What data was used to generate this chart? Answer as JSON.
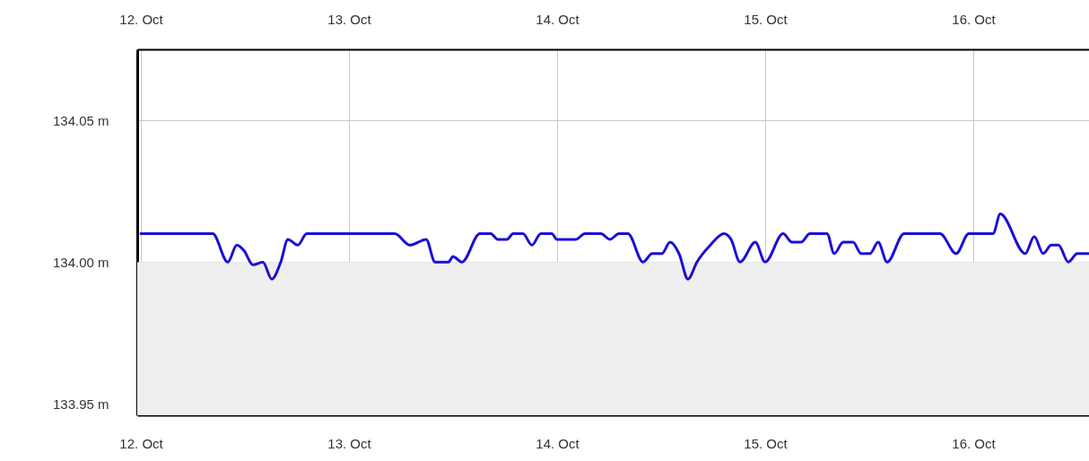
{
  "chart_data": {
    "type": "line",
    "x": [
      "--10-12T00:00",
      "--10-12T08:17",
      "--10-12T10:02",
      "--10-12T11:04",
      "--10-12T11:54",
      "--10-12T12:56",
      "--10-12T14:04",
      "--10-12T15:06",
      "--10-12T16:08",
      "--10-12T16:58",
      "--10-12T18:06",
      "--10-12T19:08",
      "--10-13T05:17",
      "--10-13T07:02",
      "--10-13T08:54",
      "--10-13T09:56",
      "--10-13T11:29",
      "--10-13T12:00",
      "--10-13T13:02",
      "--10-13T15:06",
      "--10-13T16:21",
      "--10-13T17:10",
      "--10-13T18:13",
      "--10-13T18:56",
      "--10-13T20:04",
      "--10-13T21:06",
      "--10-13T22:08",
      "--10-13T23:23",
      "--10-14T00:00",
      "--10-14T02:10",
      "--10-14T03:12",
      "--10-14T05:04",
      "--10-14T06:06",
      "--10-14T07:08",
      "--10-14T08:10",
      "--10-14T09:56",
      "--10-14T10:58",
      "--10-14T12:06",
      "--10-14T13:02",
      "--10-14T14:04",
      "--10-14T15:06",
      "--10-14T16:08",
      "--10-14T17:41",
      "--10-14T19:15",
      "--10-14T20:04",
      "--10-14T21:06",
      "--10-14T22:52",
      "--10-15T00:00",
      "--10-15T02:04",
      "--10-15T03:06",
      "--10-15T04:08",
      "--10-15T05:10",
      "--10-15T07:08",
      "--10-15T07:58",
      "--10-15T09:00",
      "--10-15T10:08",
      "--10-15T11:04",
      "--10-15T12:06",
      "--10-15T13:02",
      "--10-15T14:04",
      "--10-15T16:02",
      "--10-15T20:10",
      "--10-15T22:02",
      "--10-15T23:29",
      "--10-16T02:17",
      "--10-16T03:07",
      "--10-16T06:00",
      "--10-16T07:02",
      "--10-16T08:04",
      "--10-16T09:00",
      "--10-16T09:50",
      "--10-16T10:58",
      "--10-16T12:00",
      "--10-16T13:21"
    ],
    "series": [
      {
        "color": "#1a0fd6",
        "values": [
          134.01,
          134.01,
          134.0,
          134.006,
          134.004,
          133.999,
          134.0,
          133.994,
          134.0,
          134.008,
          134.006,
          134.01,
          134.01,
          134.006,
          134.008,
          134.0,
          134.0,
          134.002,
          134.0,
          134.01,
          134.01,
          134.008,
          134.008,
          134.01,
          134.01,
          134.006,
          134.01,
          134.01,
          134.008,
          134.008,
          134.01,
          134.01,
          134.008,
          134.01,
          134.01,
          134.0,
          134.003,
          134.003,
          134.007,
          134.003,
          133.994,
          134.0,
          134.006,
          134.01,
          134.008,
          134.0,
          134.007,
          134.0,
          134.01,
          134.007,
          134.007,
          134.01,
          134.01,
          134.003,
          134.007,
          134.007,
          134.003,
          134.003,
          134.007,
          134.0,
          134.01,
          134.01,
          134.003,
          134.01,
          134.01,
          134.017,
          134.003,
          134.009,
          134.003,
          134.006,
          134.006,
          134.0,
          134.003,
          134.003
        ]
      }
    ],
    "xlim": [
      "--10-11T23:35",
      "--10-16T13:21"
    ],
    "xticks": [
      {
        "value": "--10-12",
        "label": "12. Oct"
      },
      {
        "value": "--10-13",
        "label": "13. Oct"
      },
      {
        "value": "--10-14",
        "label": "14. Oct"
      },
      {
        "value": "--10-15",
        "label": "15. Oct"
      },
      {
        "value": "--10-16",
        "label": "16. Oct"
      }
    ],
    "x2lim": [
      "--10-11T23:35",
      "--10-16T13:21"
    ],
    "x2ticks": [
      {
        "value": "--10-12",
        "label": "12. Oct"
      },
      {
        "value": "--10-13",
        "label": "13. Oct"
      },
      {
        "value": "--10-14",
        "label": "14. Oct"
      },
      {
        "value": "--10-15",
        "label": "15. Oct"
      },
      {
        "value": "--10-16",
        "label": "16. Oct"
      }
    ],
    "ylim": [
      133.946,
      134.075
    ],
    "yticks": [
      {
        "value": 133.95,
        "label": "133.95 m"
      },
      {
        "value": 134.0,
        "label": "134.00 m"
      },
      {
        "value": 134.05,
        "label": "134.05 m"
      }
    ],
    "bands": [
      {
        "axis": "y",
        "from": 133.946,
        "to": 134.0,
        "color": "#efefef"
      }
    ],
    "grid": true,
    "line_style": "solid"
  }
}
